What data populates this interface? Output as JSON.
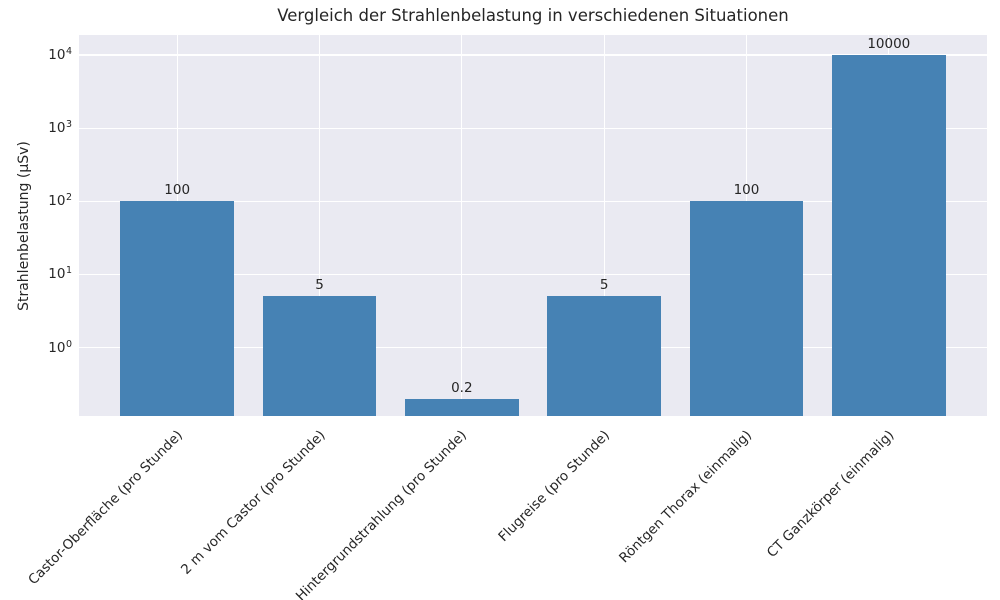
{
  "chart_data": {
    "type": "bar",
    "title": "Vergleich der Strahlenbelastung in verschiedenen Situationen",
    "xlabel": "",
    "ylabel": "Strahlenbelastung (µSv)",
    "categories": [
      "Castor-Oberfläche (pro Stunde)",
      "2 m vom Castor (pro Stunde)",
      "Hintergrundstrahlung (pro Stunde)",
      "Flugreise (pro Stunde)",
      "Röntgen Thorax (einmalig)",
      "CT Ganzkörper (einmalig)"
    ],
    "values": [
      100,
      5,
      0.2,
      5,
      100,
      10000
    ],
    "bar_labels": [
      "100",
      "5",
      "0.2",
      "5",
      "100",
      "10000"
    ],
    "yscale": "log",
    "ylim": [
      0.116,
      18800
    ],
    "ytick_exponents": [
      0,
      1,
      2,
      3,
      4
    ],
    "grid": true,
    "legend_position": "none",
    "colors": {
      "bar": "#4682B4",
      "plot_background": "#EAEAF2",
      "grid": "#FFFFFF",
      "figure_background": "#FFFFFF",
      "text": "#262626"
    }
  }
}
